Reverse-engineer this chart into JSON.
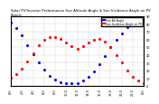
{
  "title": "Solar PV/Inverter Performance Sun Altitude Angle & Sun Incidence Angle on PV Panels",
  "title_fontsize": 2.8,
  "legend_labels": [
    "Sun Alt Angle",
    "Sun Incidence Angle on PV"
  ],
  "legend_colors": [
    "blue",
    "red"
  ],
  "blue_x": [
    0,
    1,
    2,
    3,
    4,
    5,
    6,
    7,
    8,
    9,
    10,
    11,
    12,
    13,
    14,
    15,
    16,
    17,
    18,
    19,
    20,
    21,
    22,
    23,
    24
  ],
  "blue_y": [
    82,
    75,
    65,
    53,
    41,
    30,
    21,
    13,
    8,
    5,
    3,
    3,
    4,
    7,
    12,
    19,
    28,
    38,
    50,
    60,
    68,
    76,
    81,
    84,
    85
  ],
  "red_x": [
    0,
    1,
    2,
    3,
    4,
    5,
    6,
    7,
    8,
    9,
    10,
    11,
    12,
    13,
    14,
    15,
    16,
    17,
    18,
    19,
    20,
    21,
    22,
    23,
    24
  ],
  "red_y": [
    10,
    15,
    22,
    32,
    42,
    52,
    59,
    63,
    63,
    61,
    56,
    51,
    48,
    51,
    56,
    60,
    61,
    57,
    50,
    40,
    30,
    20,
    12,
    7,
    3
  ],
  "xlim": [
    0,
    24
  ],
  "ylim": [
    0,
    90
  ],
  "tick_fontsize": 2.5,
  "x_ticks": [
    0,
    2,
    4,
    6,
    8,
    10,
    12,
    14,
    16,
    18,
    20,
    22,
    24
  ],
  "x_tick_labels": [
    "0:0",
    "2:0",
    "4:0",
    "6:0",
    "8:0",
    "10:0",
    "12:0",
    "14:0",
    "16:0",
    "18:0",
    "20:0",
    "22:0",
    "0:0"
  ],
  "y_ticks": [
    0,
    10,
    20,
    30,
    40,
    50,
    60,
    70,
    80,
    90
  ],
  "y_tick_labels": [
    "0",
    "10",
    "20",
    "30",
    "40",
    "50",
    "60",
    "70",
    "80",
    "90"
  ],
  "background_color": "#ffffff",
  "grid_color": "#d0d0d0",
  "marker_size": 1.2
}
